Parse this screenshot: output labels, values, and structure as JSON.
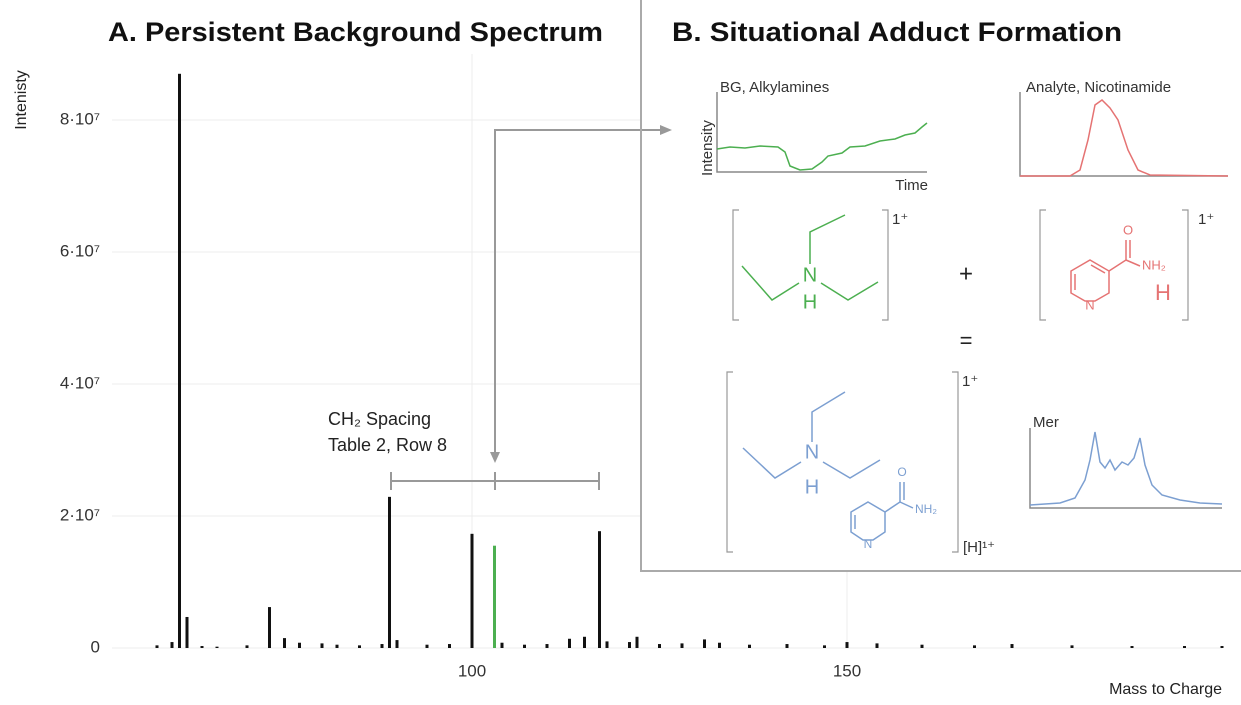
{
  "chart_data": {
    "type": "bar",
    "title": "A. Persistent Background Spectrum",
    "x_label": "Mass to Charge",
    "y_label": "Intenisty",
    "annotation": [
      "CH₂ Spacing",
      "Table 2, Row 8"
    ],
    "x": [
      58,
      60,
      61,
      62,
      64,
      66,
      70,
      73,
      75,
      77,
      80,
      82,
      85,
      88,
      89,
      90,
      94,
      97,
      100,
      103,
      104,
      107,
      110,
      113,
      115,
      117,
      118,
      121,
      122,
      125,
      128,
      131,
      133,
      137,
      142,
      147,
      150,
      154,
      160,
      167,
      172,
      180,
      188,
      195,
      200
    ],
    "values": [
      400000,
      900000,
      87000000,
      4700000,
      300000,
      200000,
      400000,
      6200000,
      1500000,
      800000,
      700000,
      500000,
      400000,
      600000,
      22900000,
      1200000,
      500000,
      600000,
      17300000,
      15500000,
      800000,
      500000,
      600000,
      1400000,
      1700000,
      17700000,
      1000000,
      900000,
      1700000,
      600000,
      700000,
      1300000,
      800000,
      500000,
      600000,
      400000,
      900000,
      700000,
      500000,
      400000,
      600000,
      400000,
      300000,
      300000,
      300000
    ],
    "colors": [
      "#111111",
      "#111111",
      "#111111",
      "#111111",
      "#111111",
      "#111111",
      "#111111",
      "#111111",
      "#111111",
      "#111111",
      "#111111",
      "#111111",
      "#111111",
      "#111111",
      "#111111",
      "#111111",
      "#111111",
      "#111111",
      "#111111",
      "#4caf50",
      "#111111",
      "#111111",
      "#111111",
      "#111111",
      "#111111",
      "#111111",
      "#111111",
      "#111111",
      "#111111",
      "#111111",
      "#111111",
      "#111111",
      "#111111",
      "#111111",
      "#111111",
      "#111111",
      "#111111",
      "#111111",
      "#111111",
      "#111111",
      "#111111",
      "#111111",
      "#111111",
      "#111111",
      "#111111"
    ],
    "xlim": [
      52,
      200
    ],
    "ylim": [
      0,
      90000000
    ],
    "xticks": [
      100,
      150
    ],
    "yticks": [
      0,
      {
        "value": 20000000,
        "label": "2·10⁷"
      },
      {
        "value": 40000000,
        "label": "4·10⁷"
      },
      {
        "value": 60000000,
        "label": "6·10⁷"
      },
      {
        "value": 80000000,
        "label": "8·10⁷"
      }
    ],
    "grid": true
  },
  "panel_b": {
    "title": "B. Situational Adduct Formation",
    "traces": [
      {
        "label": "BG, Alkylamines",
        "y_label": "Intensity",
        "x_label": "Time"
      },
      {
        "label": "Analyte, Nicotinamide"
      },
      {
        "label": "Mer"
      }
    ],
    "charge": "1⁺",
    "plus": "+",
    "equals": "=",
    "adduct_charge": "[H]¹⁺",
    "atoms": {
      "n": "N",
      "h": "H",
      "nh2": "NH₂",
      "o": "O"
    }
  }
}
